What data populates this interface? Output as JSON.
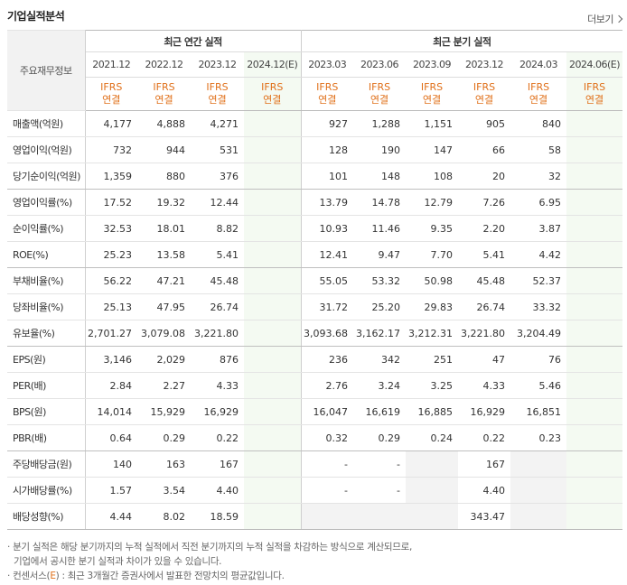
{
  "header": {
    "title": "기업실적분석",
    "more": "더보기"
  },
  "table": {
    "label_head": "주요재무정보",
    "group_annual": "최근 연간 실적",
    "group_quarter": "최근 분기 실적",
    "annual_dates": [
      "2021.12",
      "2022.12",
      "2023.12",
      "2024.12(E)"
    ],
    "quarter_dates": [
      "2023.03",
      "2023.06",
      "2023.09",
      "2023.12",
      "2024.03",
      "2024.06(E)"
    ],
    "ifrs_top": "IFRS",
    "ifrs_bottom": "연결",
    "rows": [
      {
        "label": "매출액(억원)",
        "values": [
          "4,177",
          "4,888",
          "4,271",
          "",
          "927",
          "1,288",
          "1,151",
          "905",
          "840",
          ""
        ]
      },
      {
        "label": "영업이익(억원)",
        "values": [
          "732",
          "944",
          "531",
          "",
          "128",
          "190",
          "147",
          "66",
          "58",
          ""
        ]
      },
      {
        "label": "당기순이익(억원)",
        "values": [
          "1,359",
          "880",
          "376",
          "",
          "101",
          "148",
          "108",
          "20",
          "32",
          ""
        ]
      },
      {
        "label": "영업이익률(%)",
        "values": [
          "17.52",
          "19.32",
          "12.44",
          "",
          "13.79",
          "14.78",
          "12.79",
          "7.26",
          "6.95",
          ""
        ]
      },
      {
        "label": "순이익률(%)",
        "values": [
          "32.53",
          "18.01",
          "8.82",
          "",
          "10.93",
          "11.46",
          "9.35",
          "2.20",
          "3.87",
          ""
        ]
      },
      {
        "label": "ROE(%)",
        "values": [
          "25.23",
          "13.58",
          "5.41",
          "",
          "12.41",
          "9.47",
          "7.70",
          "5.41",
          "4.42",
          ""
        ]
      },
      {
        "label": "부채비율(%)",
        "values": [
          "56.22",
          "47.21",
          "45.48",
          "",
          "55.05",
          "53.32",
          "50.98",
          "45.48",
          "52.37",
          ""
        ]
      },
      {
        "label": "당좌비율(%)",
        "values": [
          "25.13",
          "47.95",
          "26.74",
          "",
          "31.72",
          "25.20",
          "29.83",
          "26.74",
          "33.32",
          ""
        ]
      },
      {
        "label": "유보율(%)",
        "values": [
          "2,701.27",
          "3,079.08",
          "3,221.80",
          "",
          "3,093.68",
          "3,162.17",
          "3,212.31",
          "3,221.80",
          "3,204.49",
          ""
        ]
      },
      {
        "label": "EPS(원)",
        "values": [
          "3,146",
          "2,029",
          "876",
          "",
          "236",
          "342",
          "251",
          "47",
          "76",
          ""
        ]
      },
      {
        "label": "PER(배)",
        "values": [
          "2.84",
          "2.27",
          "4.33",
          "",
          "2.76",
          "3.24",
          "3.25",
          "4.33",
          "5.46",
          ""
        ]
      },
      {
        "label": "BPS(원)",
        "values": [
          "14,014",
          "15,929",
          "16,929",
          "",
          "16,047",
          "16,619",
          "16,885",
          "16,929",
          "16,851",
          ""
        ]
      },
      {
        "label": "PBR(배)",
        "values": [
          "0.64",
          "0.29",
          "0.22",
          "",
          "0.32",
          "0.29",
          "0.24",
          "0.22",
          "0.23",
          ""
        ]
      },
      {
        "label": "주당배당금(원)",
        "values": [
          "140",
          "163",
          "167",
          "",
          "-",
          "-",
          "",
          "167",
          "",
          ""
        ]
      },
      {
        "label": "시가배당률(%)",
        "values": [
          "1.57",
          "3.54",
          "4.40",
          "",
          "-",
          "-",
          "",
          "4.40",
          "",
          ""
        ]
      },
      {
        "label": "배당성향(%)",
        "values": [
          "4.44",
          "8.02",
          "18.59",
          "",
          "",
          "",
          "",
          "343.47",
          "",
          ""
        ]
      }
    ]
  },
  "notes": {
    "line1": "· 분기 실적은 해당 분기까지의 누적 실적에서 직전 분기까지의 누적 실적을 차감하는 방식으로 계산되므로,",
    "line2": "기업에서 공시한 분기 실적과 차이가 있을 수 있습니다.",
    "line3_prefix": "· 컨센서스(",
    "line3_e": "E",
    "line3_suffix": ") : 최근 3개월간 증권사에서 발표한 전망치의 평균값입니다."
  },
  "colors": {
    "ifrs": "#e0701a",
    "estimate_bg": "#f4faf2",
    "blank_bg": "#f3f3f3"
  }
}
